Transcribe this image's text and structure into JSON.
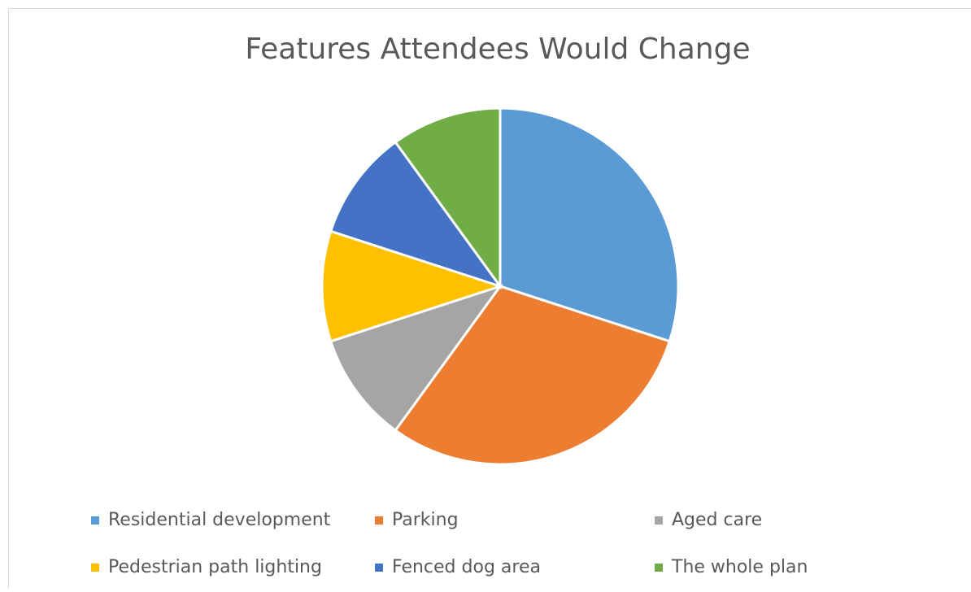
{
  "chart_data": {
    "type": "pie",
    "title": "Features Attendees Would Change",
    "categories": [
      "Residential development",
      "Parking",
      "Aged care",
      "Pedestrian path lighting",
      "Fenced dog area",
      "The whole plan"
    ],
    "values": [
      30,
      30,
      10,
      10,
      10,
      10
    ],
    "colors": [
      "#5b9bd5",
      "#ed7d31",
      "#a5a5a5",
      "#ffc000",
      "#4472c4",
      "#70ad47"
    ],
    "legend": "bottom"
  }
}
